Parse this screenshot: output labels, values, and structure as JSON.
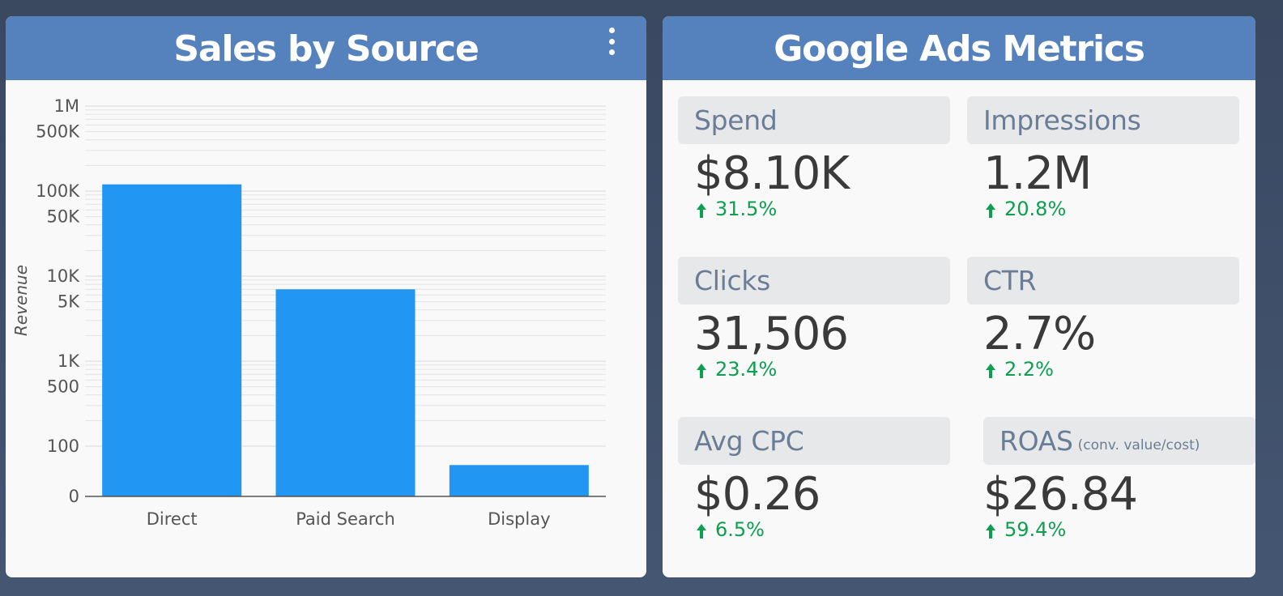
{
  "sales_panel": {
    "title": "Sales by Source",
    "menu_icon": "more-vert-icon"
  },
  "chart_data": {
    "type": "bar",
    "title": "",
    "ylabel": "Revenue",
    "xlabel": "",
    "y_scale": "log",
    "y_ticks": [
      "1M",
      "500K",
      "100K",
      "50K",
      "10K",
      "5K",
      "1K",
      "500",
      "100",
      "0"
    ],
    "categories": [
      "Direct",
      "Paid Search",
      "Display"
    ],
    "values": [
      120000,
      7000,
      60
    ],
    "bar_color": "#2196f3",
    "grid": true
  },
  "ads_panel": {
    "title": "Google Ads Metrics",
    "metrics": [
      {
        "label": "Spend",
        "sublabel": "",
        "value": "$8.10K",
        "change": "31.5%",
        "direction": "up"
      },
      {
        "label": "Impressions",
        "sublabel": "",
        "value": "1.2M",
        "change": "20.8%",
        "direction": "up"
      },
      {
        "label": "Clicks",
        "sublabel": "",
        "value": "31,506",
        "change": "23.4%",
        "direction": "up"
      },
      {
        "label": "CTR",
        "sublabel": "",
        "value": "2.7%",
        "change": "2.2%",
        "direction": "up"
      },
      {
        "label": "Avg CPC",
        "sublabel": "",
        "value": "$0.26",
        "change": "6.5%",
        "direction": "up"
      },
      {
        "label": "ROAS",
        "sublabel": "(conv. value/cost)",
        "value": "$26.84",
        "change": "59.4%",
        "direction": "up"
      }
    ]
  },
  "colors": {
    "header": "#5581bd",
    "background": "#3d4b63",
    "positive": "#0d9f4f"
  }
}
